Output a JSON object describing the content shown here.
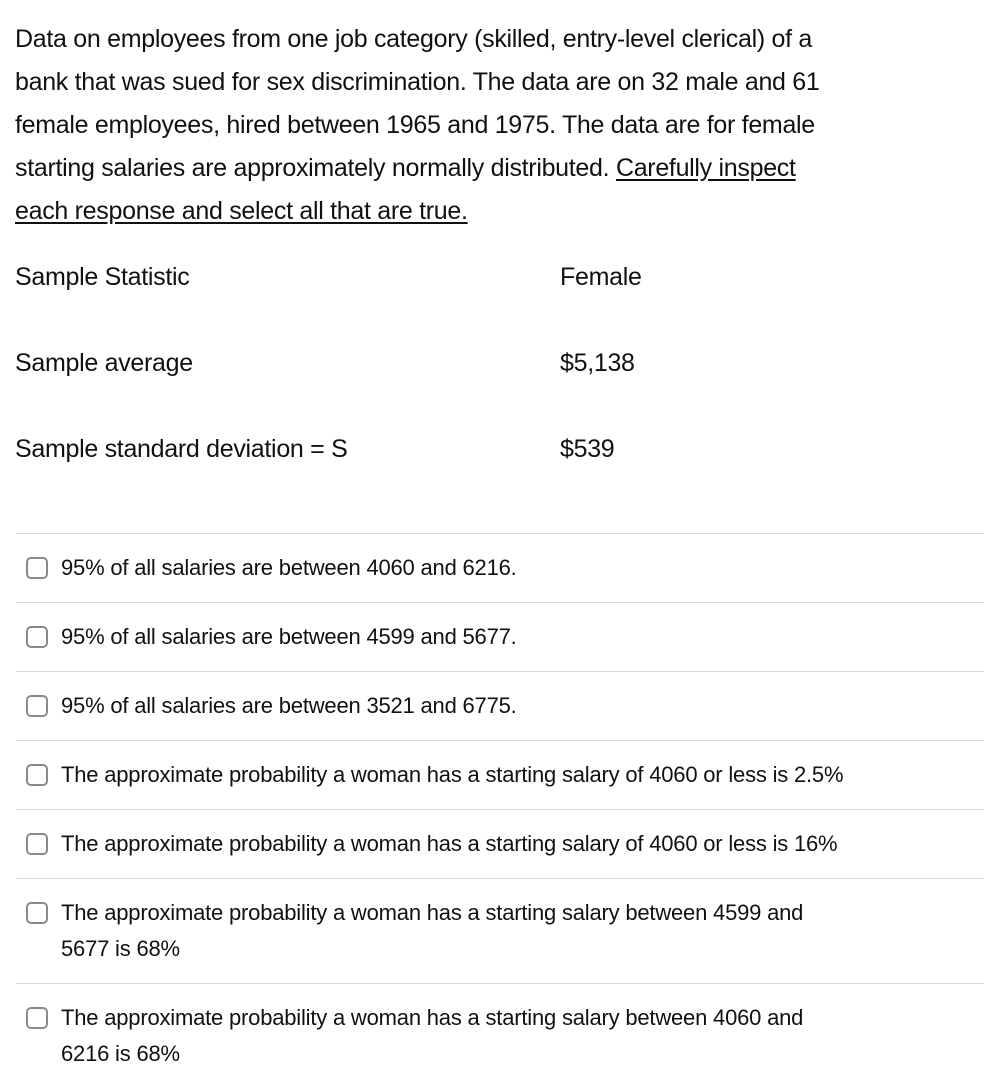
{
  "question": {
    "text_main": "Data on employees from one job category (skilled, entry-level clerical) of a\nbank that was sued for sex discrimination. The data are on 32 male and 61\nfemale employees, hired between 1965 and 1975. The data are for female\nstarting salaries are approximately normally distributed. ",
    "text_underlined": "Carefully inspect\neach response and select all that are true."
  },
  "stats_table": {
    "header": {
      "label": "Sample Statistic",
      "value": "Female"
    },
    "rows": [
      {
        "label": "Sample average",
        "value": "$5,138"
      },
      {
        "label": "Sample standard deviation = S",
        "value": "$539"
      }
    ]
  },
  "options": [
    {
      "label": "95% of all salaries are between 4060 and 6216.",
      "checked": false
    },
    {
      "label": "95% of all salaries are between 4599 and 5677.",
      "checked": false
    },
    {
      "label": "95% of all salaries are between 3521 and 6775.",
      "checked": false
    },
    {
      "label": "The approximate probability a woman has a starting salary of 4060 or less is 2.5%",
      "checked": false
    },
    {
      "label": "The approximate probability a woman has a starting salary of 4060 or less is 16%",
      "checked": false
    },
    {
      "label": "The approximate probability a woman has a starting salary between 4599 and\n5677 is 68%",
      "checked": false
    },
    {
      "label": "The approximate probability a woman has a starting salary between 4060 and\n6216 is 68%",
      "checked": false
    }
  ],
  "colors": {
    "text": "#111111",
    "divider": "#d9d9d9",
    "checkbox_border": "#8a8a8a",
    "background": "#ffffff"
  }
}
